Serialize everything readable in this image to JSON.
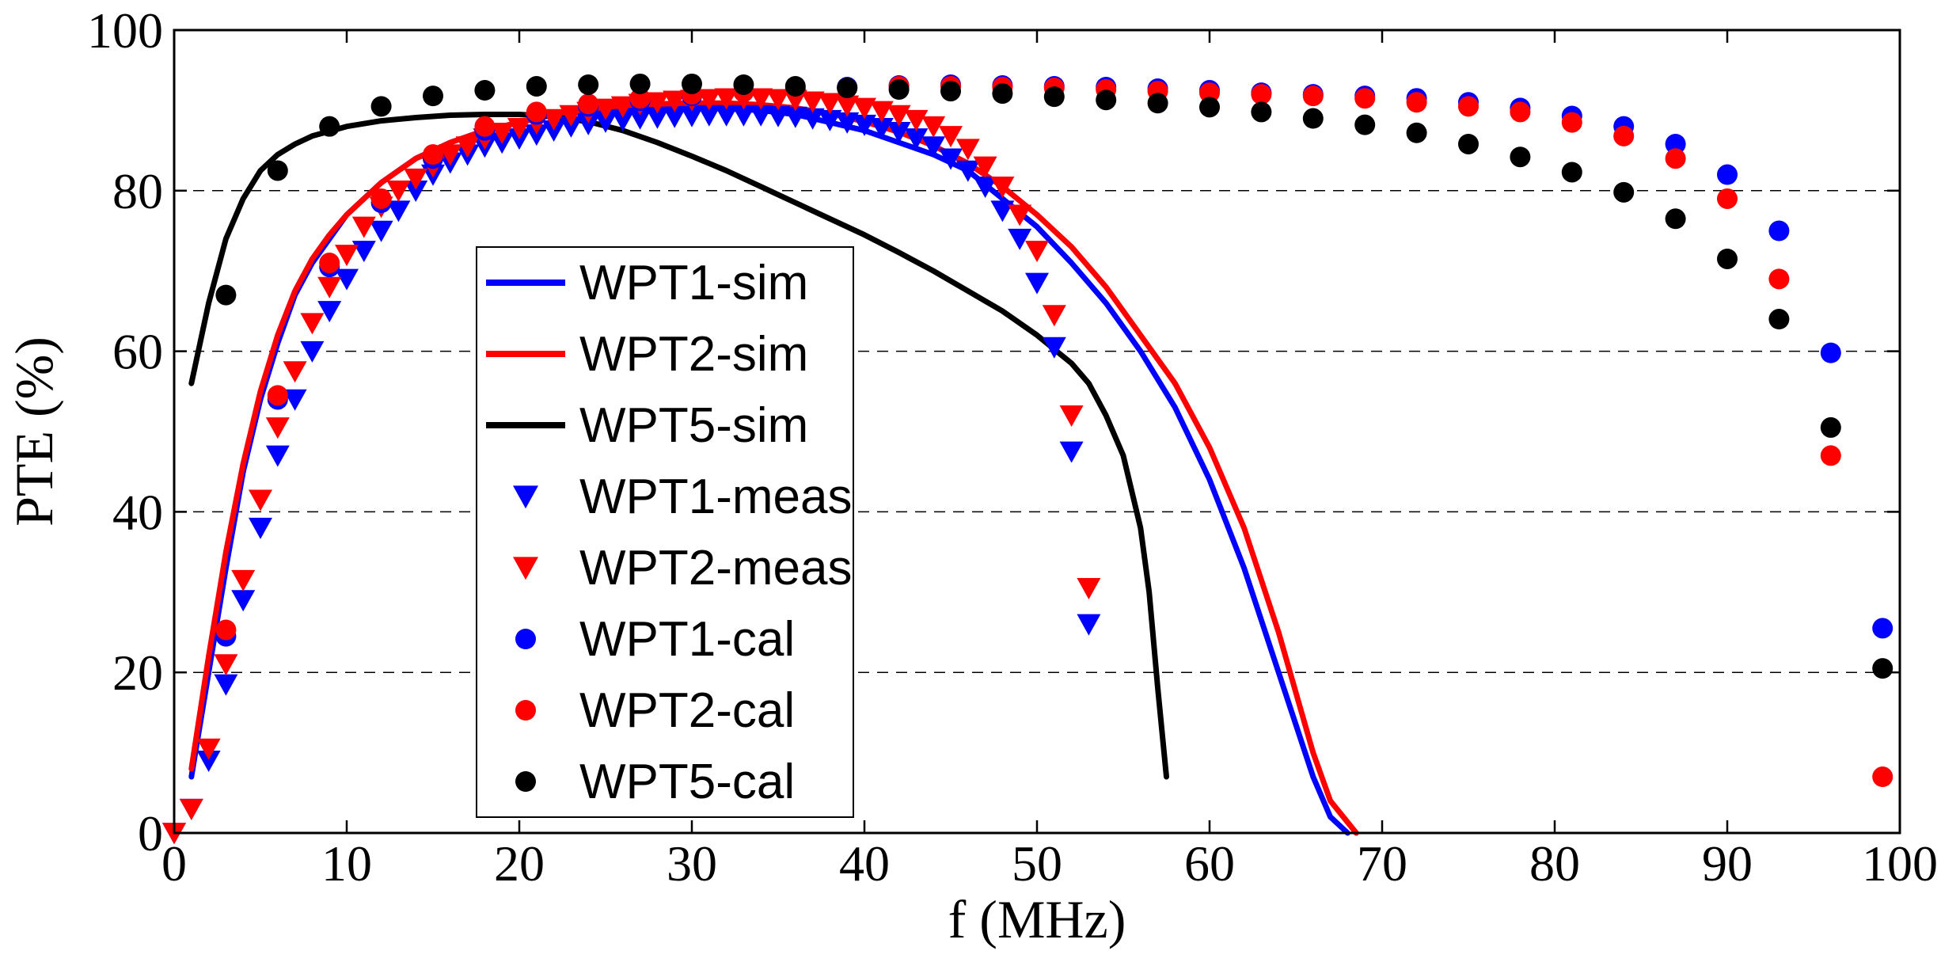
{
  "chart_data": {
    "type": "line",
    "title": "",
    "xlabel": "f (MHz)",
    "ylabel": "PTE (%)",
    "xlim": [
      0,
      100
    ],
    "ylim": [
      0,
      100
    ],
    "xticks": [
      0,
      10,
      20,
      30,
      40,
      50,
      60,
      70,
      80,
      90,
      100
    ],
    "yticks": [
      0,
      20,
      40,
      60,
      80,
      100
    ],
    "x_tick_labels": [
      "0",
      "10",
      "20",
      "30",
      "40",
      "50",
      "60",
      "70",
      "80",
      "90",
      "100"
    ],
    "y_tick_labels": [
      "0",
      "20",
      "40",
      "60",
      "80",
      "100"
    ],
    "grid": "horizontal dashed",
    "legend_position": "center-left",
    "series": [
      {
        "name": "WPT1-sim",
        "style": "line",
        "color": "#0000ff",
        "x": [
          1,
          2,
          3,
          4,
          5,
          6,
          7,
          8,
          9,
          10,
          12,
          14,
          16,
          18,
          20,
          22,
          24,
          26,
          28,
          30,
          32,
          34,
          36,
          38,
          40,
          42,
          44,
          46,
          48,
          50,
          52,
          54,
          56,
          58,
          60,
          62,
          64,
          66,
          67,
          68
        ],
        "y": [
          7,
          20,
          33,
          45,
          54,
          61,
          67,
          71,
          74,
          77,
          81,
          84,
          86,
          87.5,
          88.5,
          89.5,
          90,
          90.2,
          90.3,
          90.3,
          90.2,
          90,
          89.5,
          88.5,
          87.5,
          86,
          84.5,
          82.5,
          79,
          75.5,
          71,
          66,
          60,
          53,
          44,
          33,
          20,
          7,
          2,
          0
        ]
      },
      {
        "name": "WPT2-sim",
        "style": "line",
        "color": "#ff0000",
        "x": [
          1,
          2,
          3,
          4,
          5,
          6,
          7,
          8,
          9,
          10,
          12,
          14,
          16,
          18,
          20,
          22,
          24,
          26,
          28,
          30,
          32,
          34,
          36,
          38,
          40,
          42,
          44,
          46,
          48,
          50,
          52,
          54,
          56,
          58,
          60,
          62,
          64,
          66,
          67,
          68.5
        ],
        "y": [
          8,
          22,
          35,
          46,
          55,
          62,
          67.5,
          71.5,
          74.5,
          77,
          81,
          84,
          86,
          87.5,
          88.5,
          89.5,
          90.2,
          90.6,
          90.8,
          90.9,
          90.9,
          90.7,
          90.3,
          89.6,
          88.6,
          87.3,
          85.6,
          83.4,
          80.5,
          77,
          73,
          68,
          62,
          56,
          48,
          38,
          25,
          10,
          4,
          0
        ]
      },
      {
        "name": "WPT5-sim",
        "style": "line",
        "color": "#000000",
        "x": [
          1,
          2,
          3,
          4,
          5,
          6,
          7,
          8,
          10,
          12,
          14,
          16,
          18,
          20,
          22,
          24,
          26,
          28,
          30,
          32,
          34,
          36,
          38,
          40,
          42,
          44,
          46,
          48,
          50,
          52,
          53,
          54,
          55,
          56,
          56.5,
          57,
          57.5
        ],
        "y": [
          56,
          66,
          74,
          79,
          82.5,
          84.5,
          85.8,
          86.8,
          88,
          88.7,
          89.1,
          89.4,
          89.5,
          89.5,
          89.2,
          88.6,
          87.5,
          86,
          84.3,
          82.5,
          80.5,
          78.5,
          76.5,
          74.5,
          72.3,
          70,
          67.5,
          65,
          62,
          58.5,
          56,
          52,
          47,
          38,
          30,
          18,
          7
        ]
      },
      {
        "name": "WPT1-meas",
        "style": "triangle-down",
        "color": "#0000ff",
        "x": [
          0,
          1,
          2,
          3,
          4,
          5,
          6,
          7,
          8,
          9,
          10,
          11,
          12,
          13,
          14,
          15,
          16,
          17,
          18,
          19,
          20,
          21,
          22,
          23,
          24,
          25,
          26,
          27,
          28,
          29,
          30,
          31,
          32,
          33,
          34,
          35,
          36,
          37,
          38,
          39,
          40,
          41,
          42,
          43,
          44,
          45,
          46,
          47,
          48,
          49,
          50,
          51,
          52,
          53
        ],
        "y": [
          0,
          3,
          9,
          18.5,
          29,
          38,
          47,
          54,
          60,
          65,
          69,
          72.5,
          75,
          77.5,
          80,
          82,
          83.5,
          84.5,
          85.5,
          86,
          86.5,
          87,
          87.5,
          88,
          88.3,
          88.6,
          88.8,
          89,
          89.1,
          89.2,
          89.3,
          89.4,
          89.4,
          89.4,
          89.4,
          89.3,
          89.2,
          89,
          88.8,
          88.5,
          88.2,
          87.8,
          87.3,
          86.5,
          85.5,
          84,
          82.5,
          80.5,
          77.5,
          74,
          68.5,
          60.5,
          47.5,
          26
        ]
      },
      {
        "name": "WPT2-meas",
        "style": "triangle-down",
        "color": "#ff0000",
        "x": [
          0,
          1,
          2,
          3,
          4,
          5,
          6,
          7,
          8,
          9,
          10,
          11,
          12,
          13,
          14,
          15,
          16,
          17,
          18,
          19,
          20,
          21,
          22,
          23,
          24,
          25,
          26,
          27,
          28,
          29,
          30,
          31,
          32,
          33,
          34,
          35,
          36,
          37,
          38,
          39,
          40,
          41,
          42,
          43,
          44,
          45,
          46,
          47,
          48,
          49,
          50,
          51,
          52,
          53
        ],
        "y": [
          0,
          3,
          10.5,
          21,
          31.5,
          41.5,
          50.5,
          57.5,
          63.5,
          68,
          72,
          75.5,
          78,
          80,
          81.5,
          83,
          84.5,
          85.5,
          86.5,
          87.2,
          87.8,
          88.4,
          88.9,
          89.4,
          89.8,
          90.2,
          90.5,
          90.8,
          91,
          91.2,
          91.3,
          91.4,
          91.5,
          91.5,
          91.5,
          91.4,
          91.3,
          91.1,
          90.9,
          90.6,
          90.3,
          89.9,
          89.4,
          88.8,
          88,
          86.8,
          85.2,
          83,
          80.5,
          77,
          72.5,
          64.5,
          52,
          30.5
        ]
      },
      {
        "name": "WPT1-cal",
        "style": "circle",
        "color": "#0000ff",
        "x": [
          3,
          6,
          9,
          12,
          15,
          18,
          21,
          24,
          27,
          30,
          33,
          36,
          39,
          42,
          45,
          48,
          51,
          54,
          57,
          60,
          63,
          66,
          69,
          72,
          75,
          78,
          81,
          84,
          87,
          90,
          93,
          96,
          99
        ],
        "y": [
          24.5,
          54,
          70.5,
          78.5,
          84,
          87.5,
          89.5,
          90.5,
          91.2,
          91.8,
          92.3,
          92.6,
          92.9,
          93.1,
          93.2,
          93.1,
          93,
          92.9,
          92.7,
          92.5,
          92.2,
          92,
          91.8,
          91.5,
          91,
          90.3,
          89.3,
          88,
          85.8,
          82,
          75,
          59.8,
          25.5
        ]
      },
      {
        "name": "WPT2-cal",
        "style": "circle",
        "color": "#ff0000",
        "x": [
          3,
          6,
          9,
          12,
          15,
          18,
          21,
          24,
          27,
          30,
          33,
          36,
          39,
          42,
          45,
          48,
          51,
          54,
          57,
          60,
          63,
          66,
          69,
          72,
          75,
          78,
          81,
          84,
          87,
          90,
          93,
          96,
          99
        ],
        "y": [
          25.3,
          54.5,
          71,
          79,
          84.5,
          88,
          89.8,
          90.8,
          91.5,
          92,
          92.3,
          92.6,
          92.8,
          93,
          93,
          92.9,
          92.8,
          92.6,
          92.4,
          92.2,
          92,
          91.8,
          91.5,
          91,
          90.5,
          89.8,
          88.5,
          86.8,
          84,
          79,
          69,
          47,
          7
        ]
      },
      {
        "name": "WPT5-cal",
        "style": "circle",
        "color": "#000000",
        "x": [
          3,
          6,
          9,
          12,
          15,
          18,
          21,
          24,
          27,
          30,
          33,
          36,
          39,
          42,
          45,
          48,
          51,
          54,
          57,
          60,
          63,
          66,
          69,
          72,
          75,
          78,
          81,
          84,
          87,
          90,
          93,
          96,
          99
        ],
        "y": [
          67,
          82.5,
          88,
          90.5,
          91.8,
          92.5,
          93,
          93.2,
          93.3,
          93.3,
          93.2,
          93,
          92.8,
          92.6,
          92.4,
          92.1,
          91.7,
          91.3,
          90.9,
          90.4,
          89.8,
          89,
          88.2,
          87.2,
          85.8,
          84.2,
          82.3,
          79.8,
          76.5,
          71.5,
          64,
          50.5,
          20.5
        ]
      }
    ]
  }
}
